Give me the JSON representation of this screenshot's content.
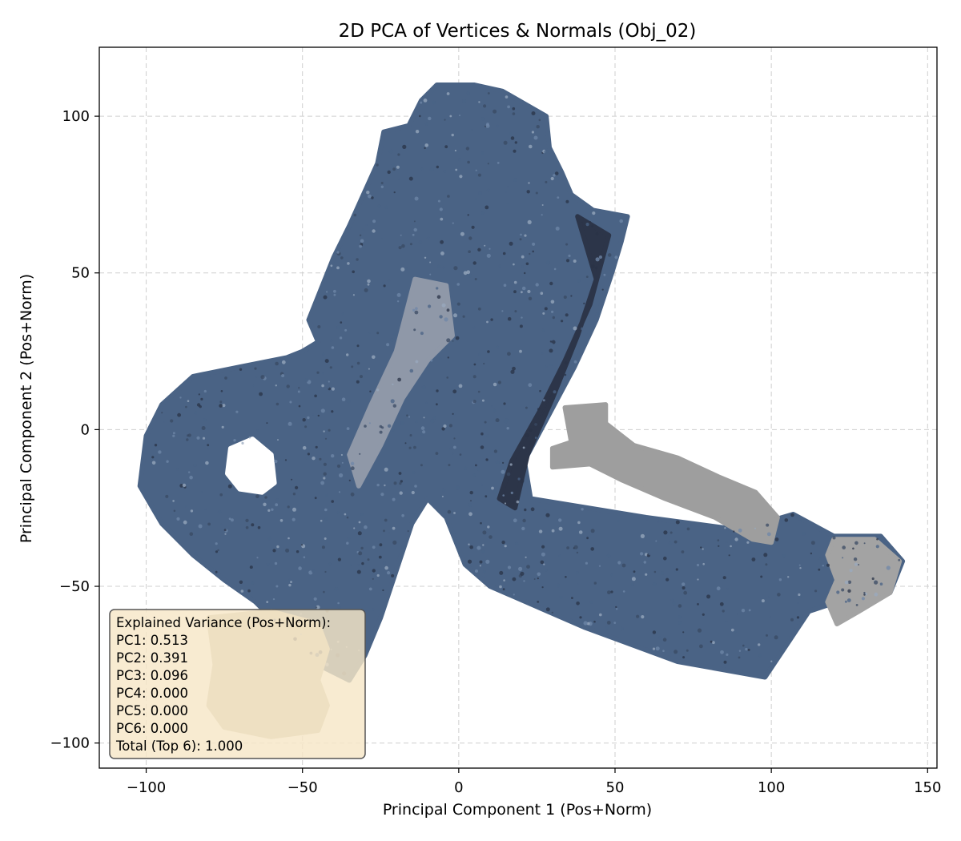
{
  "chart_data": {
    "type": "scatter",
    "title": "2D PCA of Vertices & Normals (Obj_02)",
    "xlabel": "Principal Component 1 (Pos+Norm)",
    "ylabel": "Principal Component 2 (Pos+Norm)",
    "xlim": [
      -115,
      153
    ],
    "ylim": [
      -108,
      122
    ],
    "xticks": [
      {
        "value": -100,
        "label": "−100"
      },
      {
        "value": -50,
        "label": "−50"
      },
      {
        "value": 0,
        "label": "0"
      },
      {
        "value": 50,
        "label": "50"
      },
      {
        "value": 100,
        "label": "100"
      },
      {
        "value": 150,
        "label": "150"
      }
    ],
    "yticks": [
      {
        "value": 100,
        "label": "100"
      },
      {
        "value": 50,
        "label": "50"
      },
      {
        "value": 0,
        "label": "0"
      },
      {
        "value": -50,
        "label": "−50"
      },
      {
        "value": -100,
        "label": "−100"
      }
    ],
    "grid": true,
    "point_colors": {
      "body": "#4a6385",
      "body_dark": "#2a3347",
      "gray": "#9b9b9b",
      "beige": "#c9c0ad"
    },
    "regions": [
      {
        "color": "#4a6385",
        "polygon": [
          [
            -102,
            -18
          ],
          [
            -100,
            -2
          ],
          [
            -95,
            8
          ],
          [
            -85,
            17
          ],
          [
            -70,
            20
          ],
          [
            -55,
            23
          ],
          [
            -50,
            25
          ],
          [
            -45,
            28
          ],
          [
            -48,
            35
          ],
          [
            -40,
            55
          ],
          [
            -35,
            65
          ],
          [
            -26,
            85
          ],
          [
            -24,
            95
          ],
          [
            -16,
            97
          ],
          [
            -12,
            105
          ],
          [
            -7,
            110
          ],
          [
            5,
            110
          ],
          [
            14,
            108
          ],
          [
            28,
            100
          ],
          [
            29,
            90
          ],
          [
            33,
            82
          ],
          [
            36,
            75
          ],
          [
            43,
            70
          ],
          [
            54,
            68
          ],
          [
            52,
            60
          ],
          [
            49,
            50
          ],
          [
            44,
            35
          ],
          [
            37,
            20
          ],
          [
            29,
            5
          ],
          [
            21,
            -10
          ],
          [
            23,
            -22
          ],
          [
            60,
            -28
          ],
          [
            90,
            -32
          ],
          [
            107,
            -27
          ],
          [
            120,
            -34
          ],
          [
            135,
            -34
          ],
          [
            142,
            -42
          ],
          [
            138,
            -52
          ],
          [
            125,
            -57
          ],
          [
            118,
            -56
          ],
          [
            112,
            -58
          ],
          [
            106,
            -67
          ],
          [
            98,
            -79
          ],
          [
            70,
            -74
          ],
          [
            40,
            -63
          ],
          [
            10,
            -50
          ],
          [
            2,
            -43
          ],
          [
            -4,
            -28
          ],
          [
            -10,
            -22
          ],
          [
            -15,
            -30
          ],
          [
            -20,
            -45
          ],
          [
            -25,
            -60
          ],
          [
            -30,
            -72
          ],
          [
            -35,
            -80
          ],
          [
            -45,
            -75
          ],
          [
            -55,
            -65
          ],
          [
            -65,
            -55
          ],
          [
            -75,
            -48
          ],
          [
            -85,
            -40
          ],
          [
            -95,
            -30
          ]
        ]
      },
      {
        "color": "#2c3549",
        "polygon": [
          [
            38,
            68
          ],
          [
            48,
            62
          ],
          [
            42,
            40
          ],
          [
            34,
            22
          ],
          [
            26,
            6
          ],
          [
            17,
            -10
          ],
          [
            13,
            -22
          ],
          [
            18,
            -25
          ],
          [
            22,
            -8
          ],
          [
            30,
            10
          ],
          [
            38,
            30
          ],
          [
            44,
            48
          ]
        ]
      },
      {
        "color": "#9e9e9e",
        "polygon": [
          [
            34,
            7
          ],
          [
            47,
            8
          ],
          [
            47,
            2
          ],
          [
            56,
            -5
          ],
          [
            70,
            -9
          ],
          [
            83,
            -15
          ],
          [
            95,
            -20
          ],
          [
            102,
            -28
          ],
          [
            100,
            -36
          ],
          [
            94,
            -35
          ],
          [
            82,
            -28
          ],
          [
            66,
            -22
          ],
          [
            52,
            -16
          ],
          [
            42,
            -11
          ],
          [
            30,
            -12
          ],
          [
            30,
            -6
          ],
          [
            36,
            -4
          ]
        ]
      },
      {
        "color": "#c9c0ad",
        "polygon": [
          [
            -80,
            -60
          ],
          [
            -60,
            -58
          ],
          [
            -45,
            -62
          ],
          [
            -42,
            -70
          ],
          [
            -45,
            -80
          ],
          [
            -42,
            -88
          ],
          [
            -45,
            -96
          ],
          [
            -60,
            -98
          ],
          [
            -75,
            -95
          ],
          [
            -80,
            -88
          ],
          [
            -78,
            -75
          ]
        ]
      },
      {
        "color": "#a3a3a3",
        "polygon": [
          [
            120,
            -35
          ],
          [
            133,
            -35
          ],
          [
            141,
            -42
          ],
          [
            138,
            -52
          ],
          [
            128,
            -58
          ],
          [
            121,
            -62
          ],
          [
            118,
            -55
          ],
          [
            121,
            -48
          ],
          [
            118,
            -40
          ]
        ]
      },
      {
        "color": "#8f98a8",
        "polygon": [
          [
            -14,
            48
          ],
          [
            -4,
            46
          ],
          [
            -2,
            30
          ],
          [
            -10,
            22
          ],
          [
            -18,
            10
          ],
          [
            -25,
            -5
          ],
          [
            -32,
            -18
          ],
          [
            -35,
            -8
          ],
          [
            -28,
            8
          ],
          [
            -20,
            25
          ]
        ]
      },
      {
        "color": "#ffffff",
        "polygon": [
          [
            -73,
            -6
          ],
          [
            -66,
            -3
          ],
          [
            -60,
            -8
          ],
          [
            -59,
            -17
          ],
          [
            -63,
            -20
          ],
          [
            -70,
            -19
          ],
          [
            -74,
            -14
          ]
        ]
      }
    ],
    "legend_box": {
      "lines": [
        "Explained Variance (Pos+Norm):",
        "PC1: 0.513",
        "PC2: 0.391",
        "PC3: 0.096",
        "PC4: 0.000",
        "PC5: 0.000",
        "PC6: 0.000",
        "Total (Top 6): 1.000"
      ],
      "placement": "bottom-left",
      "facecolor": "#f7e6c7",
      "edgecolor": "#555555"
    }
  }
}
